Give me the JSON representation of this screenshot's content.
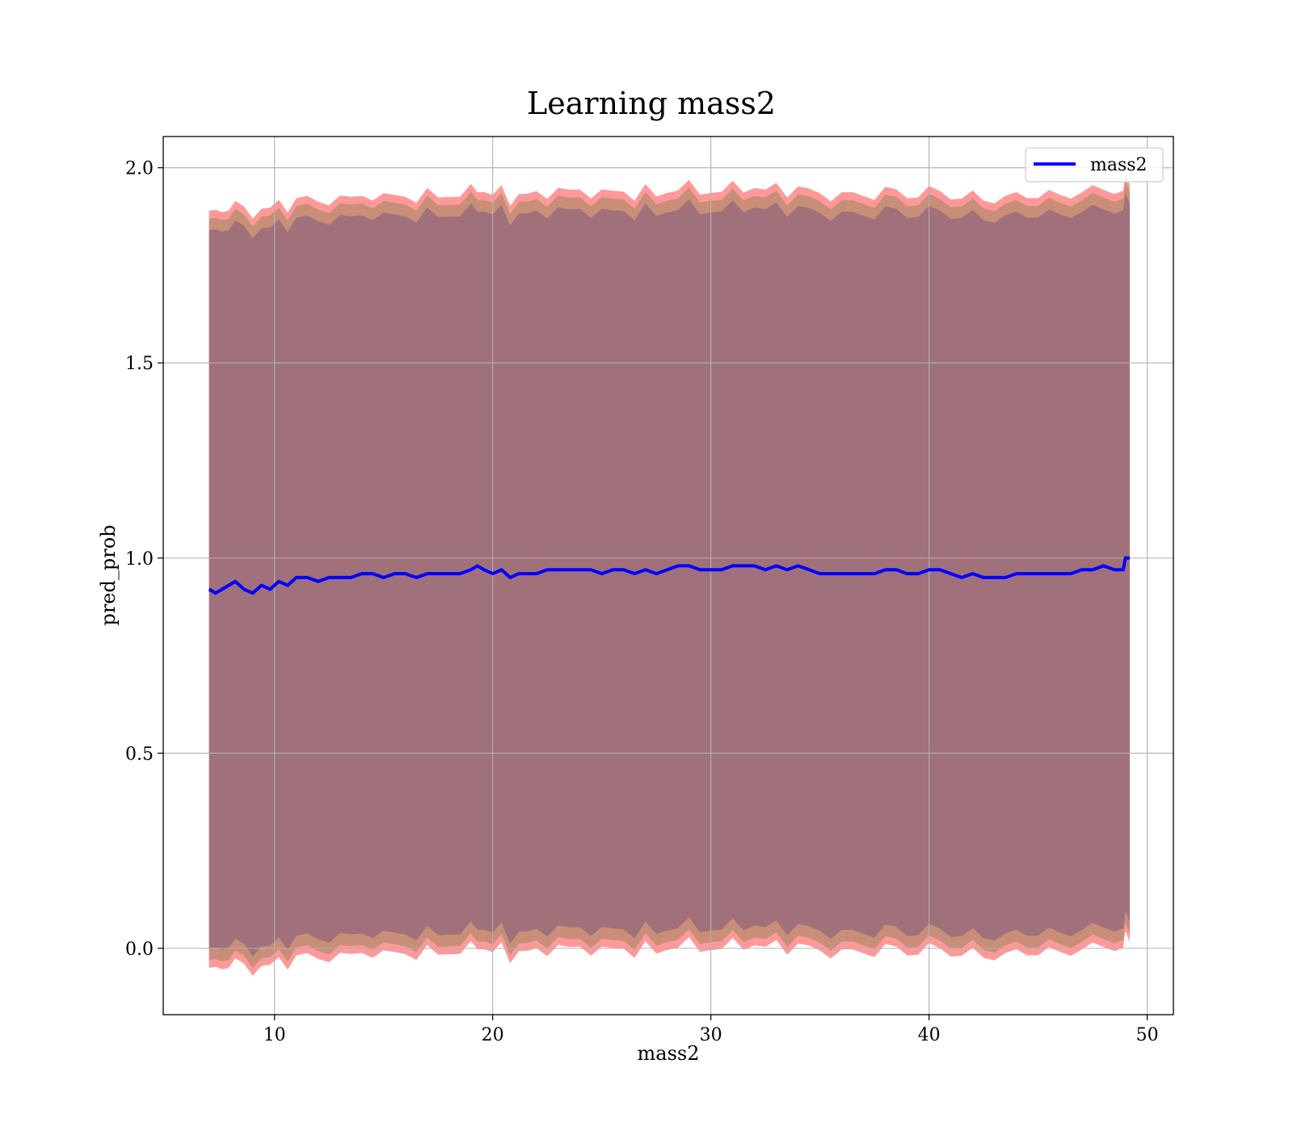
{
  "chart_data": {
    "type": "area",
    "title": "Learning mass2",
    "xlabel": "mass2",
    "ylabel": "pred_prob",
    "xlim": [
      4.9,
      51.2
    ],
    "ylim": [
      -0.17,
      2.08
    ],
    "xticks": [
      10,
      20,
      30,
      40,
      50
    ],
    "yticks": [
      0.0,
      0.5,
      1.0,
      1.5,
      2.0
    ],
    "xtick_labels": [
      "10",
      "20",
      "30",
      "40",
      "50"
    ],
    "ytick_labels": [
      "0.0",
      "0.5",
      "1.0",
      "1.5",
      "2.0"
    ],
    "grid": true,
    "legend": {
      "position": "top-right",
      "entries": [
        "mass2"
      ]
    },
    "colors": {
      "line": "#0000ff",
      "band_outer": "#ff9999",
      "band_middle": "#c98e78",
      "band_inner": "#a1717b",
      "grid": "#b0b0b0"
    },
    "series": [
      {
        "name": "mass2",
        "x": [
          7.0,
          7.3,
          7.6,
          7.9,
          8.2,
          8.6,
          9.0,
          9.4,
          9.8,
          10.2,
          10.6,
          11.0,
          11.5,
          12.0,
          12.5,
          13.0,
          13.5,
          14.0,
          14.5,
          15.0,
          15.5,
          16.0,
          16.5,
          17.0,
          17.5,
          18.0,
          18.5,
          19.0,
          19.3,
          19.6,
          20.0,
          20.4,
          20.8,
          21.2,
          21.6,
          22.0,
          22.5,
          23.0,
          23.5,
          24.0,
          24.5,
          25.0,
          25.5,
          26.0,
          26.5,
          27.0,
          27.5,
          28.0,
          28.5,
          29.0,
          29.5,
          30.0,
          30.5,
          31.0,
          31.5,
          32.0,
          32.5,
          33.0,
          33.5,
          34.0,
          34.5,
          35.0,
          35.5,
          36.0,
          36.5,
          37.0,
          37.5,
          38.0,
          38.5,
          39.0,
          39.5,
          40.0,
          40.5,
          41.0,
          41.5,
          42.0,
          42.5,
          43.0,
          43.5,
          44.0,
          44.5,
          45.0,
          45.5,
          46.0,
          46.5,
          47.0,
          47.5,
          48.0,
          48.5,
          48.9,
          49.0,
          49.2
        ],
        "y": [
          0.92,
          0.91,
          0.92,
          0.93,
          0.94,
          0.92,
          0.91,
          0.93,
          0.92,
          0.94,
          0.93,
          0.95,
          0.95,
          0.94,
          0.95,
          0.95,
          0.95,
          0.96,
          0.96,
          0.95,
          0.96,
          0.96,
          0.95,
          0.96,
          0.96,
          0.96,
          0.96,
          0.97,
          0.98,
          0.97,
          0.96,
          0.97,
          0.95,
          0.96,
          0.96,
          0.96,
          0.97,
          0.97,
          0.97,
          0.97,
          0.97,
          0.96,
          0.97,
          0.97,
          0.96,
          0.97,
          0.96,
          0.97,
          0.98,
          0.98,
          0.97,
          0.97,
          0.97,
          0.98,
          0.98,
          0.98,
          0.97,
          0.98,
          0.97,
          0.98,
          0.97,
          0.96,
          0.96,
          0.96,
          0.96,
          0.96,
          0.96,
          0.97,
          0.97,
          0.96,
          0.96,
          0.97,
          0.97,
          0.96,
          0.95,
          0.96,
          0.95,
          0.95,
          0.95,
          0.96,
          0.96,
          0.96,
          0.96,
          0.96,
          0.96,
          0.97,
          0.97,
          0.98,
          0.97,
          0.97,
          1.0,
          1.0
        ],
        "band_inner_halfwidth": 0.92,
        "band_middle_halfwidth": 0.95,
        "band_outer_halfwidth": 0.97
      }
    ]
  }
}
